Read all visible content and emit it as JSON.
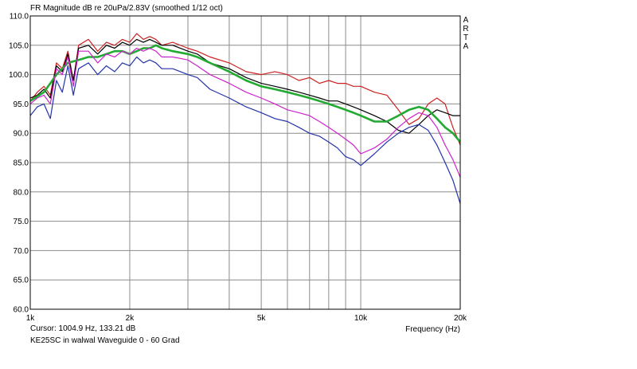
{
  "chart_data": {
    "type": "line",
    "title": "FR Magnitude dB re 20uPa/2.83V (smoothed 1/12 oct)",
    "brand_letters": [
      "A",
      "R",
      "T",
      "A"
    ],
    "xlabel": "Frequency (Hz)",
    "x_scale": "log",
    "xlim": [
      1000,
      20000
    ],
    "ylim": [
      60,
      110
    ],
    "x_tick_labels": [
      {
        "value": 1000,
        "label": "1k"
      },
      {
        "value": 2000,
        "label": "2k"
      },
      {
        "value": 5000,
        "label": "5k"
      },
      {
        "value": 10000,
        "label": "10k"
      },
      {
        "value": 20000,
        "label": "20k"
      }
    ],
    "y_ticks": [
      60,
      65,
      70,
      75,
      80,
      85,
      90,
      95,
      100,
      105,
      110
    ],
    "y_tick_labels": [
      "60.0",
      "65.0",
      "70.0",
      "75.0",
      "80.0",
      "85.0",
      "90.0",
      "95.0",
      "100.0",
      "105.0",
      "110.0"
    ],
    "grid": true,
    "series": [
      {
        "color": "#cc2020",
        "x": [
          1000,
          1050,
          1100,
          1150,
          1200,
          1250,
          1300,
          1350,
          1400,
          1500,
          1600,
          1700,
          1800,
          1900,
          2000,
          2100,
          2200,
          2300,
          2400,
          2500,
          2700,
          3000,
          3200,
          3500,
          4000,
          4500,
          5000,
          5500,
          6000,
          6500,
          7000,
          7500,
          8000,
          8500,
          9000,
          9500,
          10000,
          11000,
          12000,
          13000,
          14000,
          15000,
          16000,
          17000,
          18000,
          19000,
          20000
        ],
        "y": [
          95.5,
          97,
          98,
          96.5,
          102,
          101,
          104,
          99,
          105,
          106,
          104,
          105.5,
          105,
          106,
          105.5,
          107,
          106,
          106.5,
          106,
          105,
          105.5,
          104.5,
          104,
          103,
          102,
          100.5,
          100,
          100.5,
          100,
          99,
          99.5,
          98.5,
          99,
          98.5,
          98.5,
          98,
          98,
          97,
          96.5,
          94,
          91.5,
          92.5,
          95,
          96,
          95,
          91,
          88
        ]
      },
      {
        "color": "#000000",
        "x": [
          1000,
          1050,
          1100,
          1150,
          1200,
          1250,
          1300,
          1350,
          1400,
          1500,
          1600,
          1700,
          1800,
          1900,
          2000,
          2100,
          2200,
          2300,
          2400,
          2500,
          2700,
          3000,
          3200,
          3500,
          4000,
          4500,
          5000,
          5500,
          6000,
          6500,
          7000,
          7500,
          8000,
          8500,
          9000,
          9500,
          10000,
          11000,
          12000,
          13000,
          14000,
          15000,
          16000,
          17000,
          18000,
          19000,
          20000
        ],
        "y": [
          96,
          96.5,
          97.5,
          96,
          101.5,
          100.5,
          103.5,
          99,
          104.5,
          105,
          103.5,
          105,
          104.5,
          105.5,
          105,
          106,
          105.5,
          106,
          105.5,
          105,
          105,
          104,
          103.5,
          102,
          101,
          99.5,
          98.5,
          98,
          97.5,
          97,
          96.5,
          96,
          95.5,
          95.5,
          95,
          94.5,
          94,
          93,
          92,
          90.5,
          90,
          91.5,
          93,
          94,
          93.5,
          93,
          93
        ]
      },
      {
        "color": "#22aa33",
        "x": [
          1000,
          1100,
          1200,
          1300,
          1400,
          1500,
          1600,
          1700,
          1800,
          1900,
          2000,
          2100,
          2200,
          2300,
          2400,
          2500,
          2700,
          3000,
          3200,
          3500,
          4000,
          4500,
          5000,
          5500,
          6000,
          6500,
          7000,
          7500,
          8000,
          8500,
          9000,
          9500,
          10000,
          11000,
          12000,
          13000,
          14000,
          15000,
          16000,
          17000,
          18000,
          19000,
          20000
        ],
        "y": [
          95.5,
          97,
          100,
          102,
          102.5,
          103,
          103,
          103.5,
          104,
          104,
          103.5,
          104,
          104.5,
          104.5,
          105,
          104.5,
          104,
          103.5,
          103,
          102,
          100.5,
          99,
          98,
          97.5,
          97,
          96.5,
          96,
          95.5,
          95,
          94.5,
          94,
          93.5,
          93,
          92,
          92,
          93,
          94,
          94.5,
          94,
          92.5,
          91,
          90,
          88.5
        ]
      },
      {
        "color": "#cc22cc",
        "x": [
          1000,
          1050,
          1100,
          1150,
          1200,
          1250,
          1300,
          1350,
          1400,
          1500,
          1600,
          1700,
          1800,
          1900,
          2000,
          2100,
          2200,
          2300,
          2400,
          2500,
          2700,
          3000,
          3200,
          3500,
          4000,
          4500,
          5000,
          5500,
          6000,
          6500,
          7000,
          7500,
          8000,
          8500,
          9000,
          9500,
          10000,
          11000,
          12000,
          13000,
          14000,
          15000,
          16000,
          17000,
          18000,
          19000,
          20000
        ],
        "y": [
          95,
          96,
          96.5,
          95,
          101,
          100,
          103,
          98,
          104,
          104,
          102,
          103.5,
          103,
          104,
          103.5,
          104.5,
          104,
          104.5,
          104,
          103,
          103,
          102.5,
          101.5,
          100,
          98.5,
          97,
          96,
          95,
          94,
          93.5,
          93,
          92,
          91,
          90,
          89,
          88,
          86.5,
          87.5,
          89,
          91,
          92.5,
          93.5,
          93,
          91,
          88,
          85.5,
          82.5
        ]
      },
      {
        "color": "#2233aa",
        "x": [
          1000,
          1050,
          1100,
          1150,
          1200,
          1250,
          1300,
          1350,
          1400,
          1500,
          1600,
          1700,
          1800,
          1900,
          2000,
          2100,
          2200,
          2300,
          2400,
          2500,
          2700,
          3000,
          3200,
          3500,
          4000,
          4500,
          5000,
          5500,
          6000,
          6500,
          7000,
          7500,
          8000,
          8500,
          9000,
          9500,
          10000,
          11000,
          12000,
          13000,
          14000,
          15000,
          16000,
          17000,
          18000,
          19000,
          20000
        ],
        "y": [
          93,
          94.5,
          95,
          92.5,
          99,
          97,
          101.5,
          96.5,
          101,
          102,
          100,
          101.5,
          100.5,
          102,
          101.5,
          103,
          102,
          102.5,
          102,
          101,
          101,
          100,
          99.5,
          97.5,
          96,
          94.5,
          93.5,
          92.5,
          92,
          91,
          90,
          89.5,
          88.5,
          87.5,
          86,
          85.5,
          84.5,
          86.5,
          88.5,
          90,
          91,
          91.5,
          90.5,
          88,
          85,
          82,
          78
        ]
      }
    ]
  },
  "status": {
    "cursor": "Cursor: 1004.9 Hz, 133.21 dB",
    "caption": "KE25SC in walwal Waveguide 0 - 60 Grad"
  }
}
